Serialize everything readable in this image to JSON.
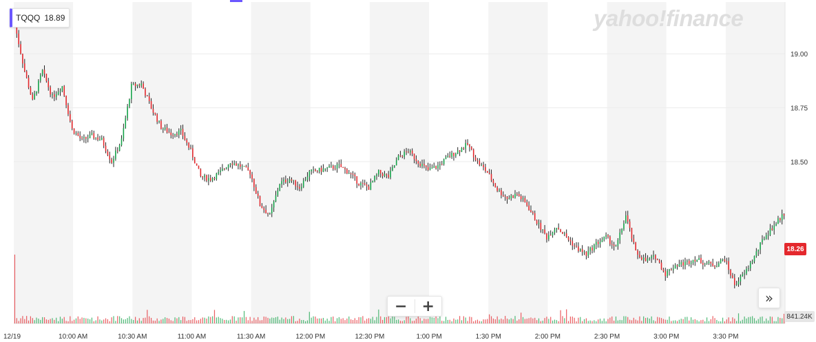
{
  "ticker": {
    "symbol": "TQQQ",
    "price": "18.89"
  },
  "watermark": "yahoo!finance",
  "controls": {
    "zoom_out": "−",
    "zoom_in": "+",
    "pan_right": "»"
  },
  "flags": {
    "last_price": "18.26",
    "volume": "841.24K"
  },
  "colors": {
    "up": "#16a34a",
    "down": "#e4282d",
    "wick": "#222222",
    "band": "#f4f4f4",
    "grid": "#ececec",
    "accent": "#6b57ff"
  },
  "chart_data": {
    "type": "candlestick",
    "date_label": "12/19",
    "x_tick_labels": [
      "10:00 AM",
      "10:30 AM",
      "11:00 AM",
      "11:30 AM",
      "12:00 PM",
      "12:30 PM",
      "1:00 PM",
      "1:30 PM",
      "2:00 PM",
      "2:30 PM",
      "3:00 PM",
      "3:30 PM"
    ],
    "y_tick_labels": [
      "19.00",
      "18.75",
      "18.50"
    ],
    "y_ticks": [
      19.0,
      18.75,
      18.5
    ],
    "ylim": [
      17.75,
      19.24
    ],
    "session": [
      "09:30",
      "16:00"
    ],
    "alternating_half_hour_bands": true,
    "grid": true,
    "price_path": [
      [
        "09:30",
        19.18
      ],
      [
        "09:33",
        19.05
      ],
      [
        "09:36",
        18.92
      ],
      [
        "09:40",
        18.78
      ],
      [
        "09:45",
        18.92
      ],
      [
        "09:50",
        18.8
      ],
      [
        "09:55",
        18.85
      ],
      [
        "10:00",
        18.65
      ],
      [
        "10:05",
        18.6
      ],
      [
        "10:10",
        18.62
      ],
      [
        "10:15",
        18.6
      ],
      [
        "10:20",
        18.5
      ],
      [
        "10:25",
        18.6
      ],
      [
        "10:30",
        18.85
      ],
      [
        "10:35",
        18.86
      ],
      [
        "10:40",
        18.75
      ],
      [
        "10:45",
        18.66
      ],
      [
        "10:50",
        18.63
      ],
      [
        "10:55",
        18.64
      ],
      [
        "11:00",
        18.55
      ],
      [
        "11:05",
        18.43
      ],
      [
        "11:10",
        18.42
      ],
      [
        "11:15",
        18.45
      ],
      [
        "11:20",
        18.5
      ],
      [
        "11:25",
        18.48
      ],
      [
        "11:30",
        18.45
      ],
      [
        "11:35",
        18.3
      ],
      [
        "11:40",
        18.25
      ],
      [
        "11:45",
        18.4
      ],
      [
        "11:50",
        18.42
      ],
      [
        "11:55",
        18.38
      ],
      [
        "12:00",
        18.45
      ],
      [
        "12:05",
        18.46
      ],
      [
        "12:10",
        18.47
      ],
      [
        "12:15",
        18.48
      ],
      [
        "12:20",
        18.45
      ],
      [
        "12:25",
        18.4
      ],
      [
        "12:30",
        18.38
      ],
      [
        "12:35",
        18.45
      ],
      [
        "12:40",
        18.43
      ],
      [
        "12:45",
        18.52
      ],
      [
        "12:50",
        18.55
      ],
      [
        "12:55",
        18.5
      ],
      [
        "13:00",
        18.46
      ],
      [
        "13:05",
        18.48
      ],
      [
        "13:10",
        18.52
      ],
      [
        "13:15",
        18.55
      ],
      [
        "13:20",
        18.58
      ],
      [
        "13:25",
        18.5
      ],
      [
        "13:30",
        18.45
      ],
      [
        "13:35",
        18.37
      ],
      [
        "13:40",
        18.33
      ],
      [
        "13:45",
        18.35
      ],
      [
        "13:50",
        18.3
      ],
      [
        "13:55",
        18.22
      ],
      [
        "14:00",
        18.15
      ],
      [
        "14:05",
        18.2
      ],
      [
        "14:10",
        18.15
      ],
      [
        "14:15",
        18.1
      ],
      [
        "14:20",
        18.07
      ],
      [
        "14:25",
        18.12
      ],
      [
        "14:30",
        18.15
      ],
      [
        "14:35",
        18.1
      ],
      [
        "14:40",
        18.25
      ],
      [
        "14:45",
        18.08
      ],
      [
        "14:50",
        18.04
      ],
      [
        "14:55",
        18.06
      ],
      [
        "15:00",
        17.98
      ],
      [
        "15:05",
        18.02
      ],
      [
        "15:10",
        18.03
      ],
      [
        "15:15",
        18.05
      ],
      [
        "15:20",
        18.03
      ],
      [
        "15:25",
        18.02
      ],
      [
        "15:30",
        18.05
      ],
      [
        "15:35",
        17.93
      ],
      [
        "15:40",
        17.98
      ],
      [
        "15:45",
        18.06
      ],
      [
        "15:50",
        18.15
      ],
      [
        "16:00",
        18.26
      ]
    ],
    "volume_max_label": "841.24K"
  }
}
